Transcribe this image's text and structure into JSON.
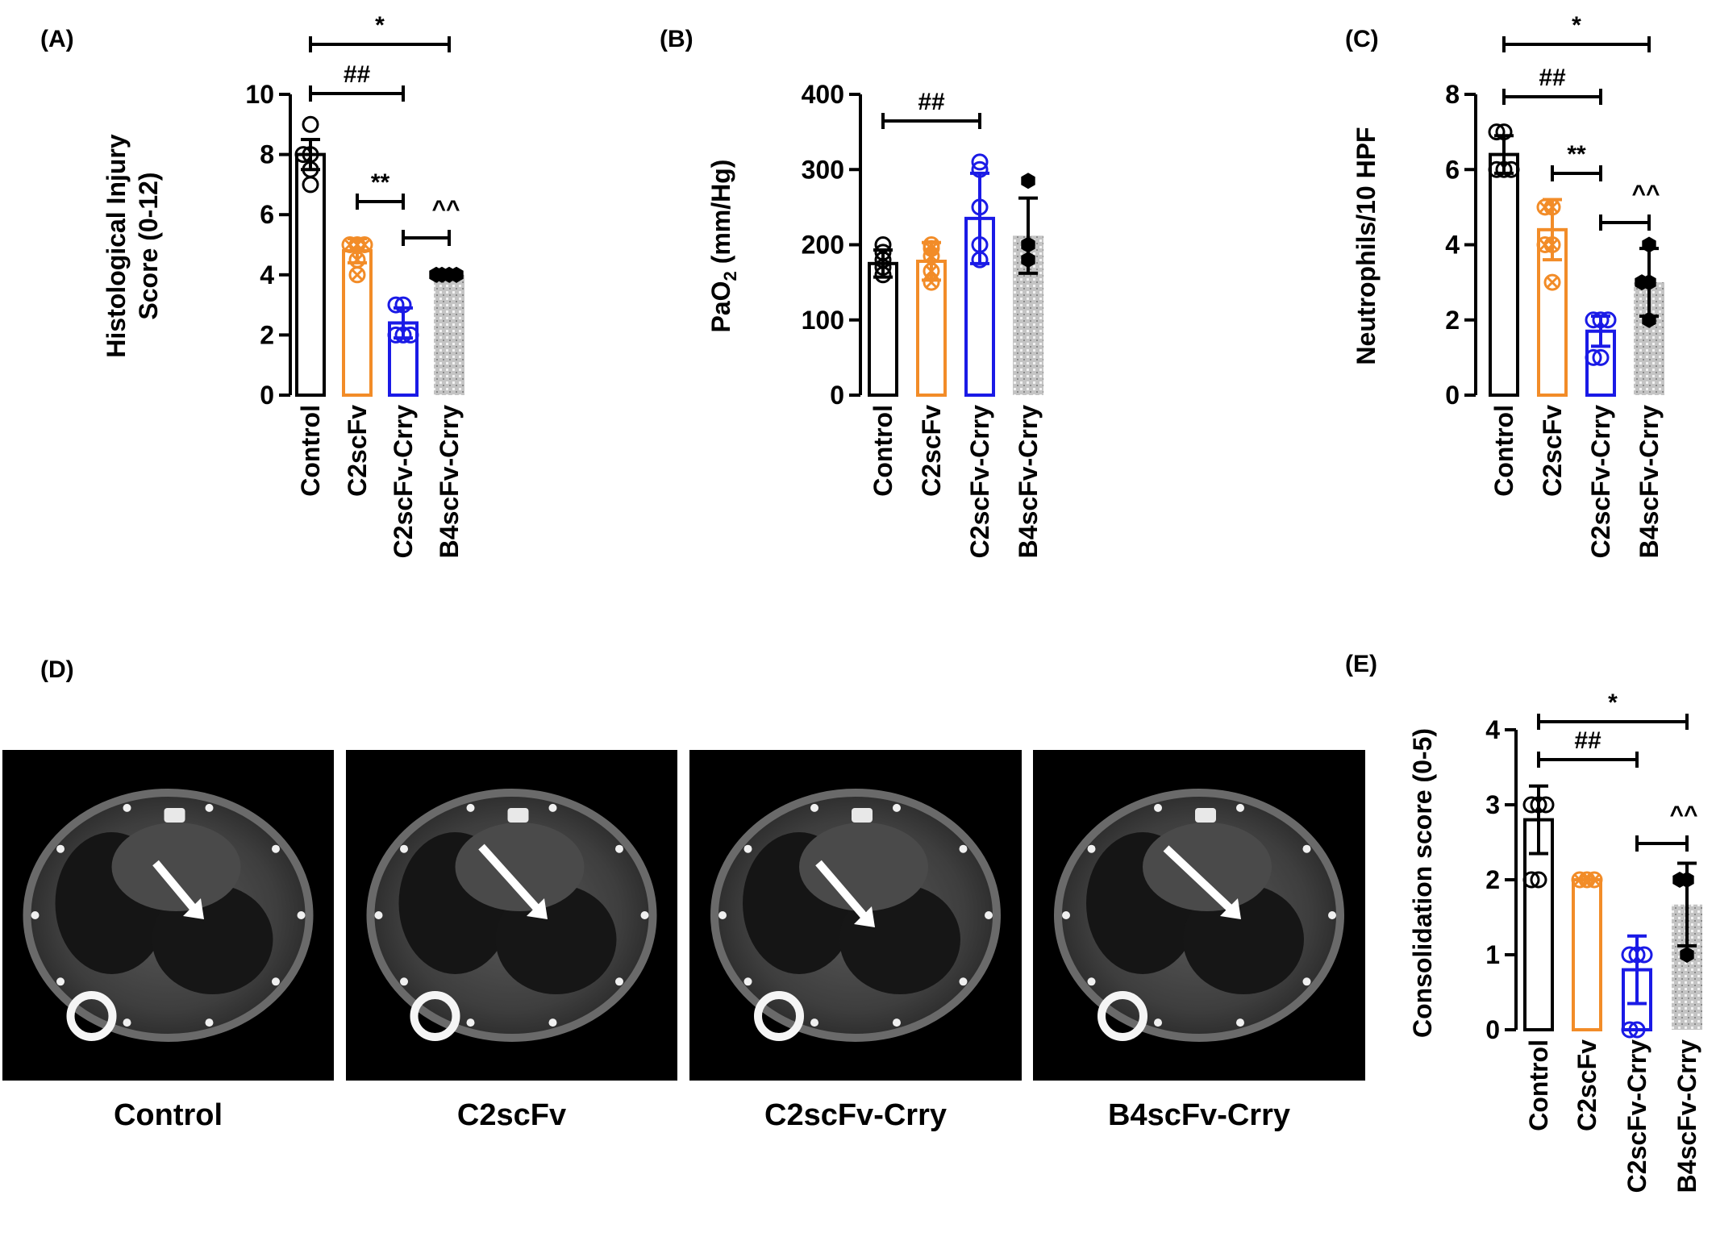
{
  "chart_data": [
    {
      "type": "bar",
      "panel": "(A)",
      "ylabel": [
        "Histological Injury",
        "Score (0-12)"
      ],
      "ylim": [
        0,
        10
      ],
      "yticks": [
        0,
        2,
        4,
        6,
        8,
        10
      ],
      "categories": [
        "Control",
        "C2scFv",
        "C2scFv-Crry",
        "B4scFv-Crry"
      ],
      "values": [
        8.0,
        4.8,
        2.4,
        4.0
      ],
      "errors": [
        0.5,
        0.4,
        0.5,
        0.0
      ],
      "points": [
        [
          9,
          8,
          8,
          7.5,
          7
        ],
        [
          5,
          5,
          5,
          4.5,
          4
        ],
        [
          3,
          3,
          2,
          2,
          2
        ],
        [
          4,
          4,
          4,
          4
        ]
      ],
      "significance": [
        {
          "from": 0,
          "to": 3,
          "label": "*"
        },
        {
          "from": 0,
          "to": 2,
          "label": "##"
        },
        {
          "from": 1,
          "to": 2,
          "label": "**"
        },
        {
          "from": 2,
          "to": 3,
          "label": "^^"
        }
      ]
    },
    {
      "type": "bar",
      "panel": "(B)",
      "ylabel": [
        "PaO2 (mm/Hg)"
      ],
      "ylim": [
        0,
        400
      ],
      "yticks": [
        0,
        100,
        200,
        300,
        400
      ],
      "categories": [
        "Control",
        "C2scFv",
        "C2scFv-Crry",
        "B4scFv-Crry"
      ],
      "values": [
        175,
        178,
        235,
        212
      ],
      "errors": [
        18,
        25,
        60,
        50
      ],
      "points": [
        [
          200,
          190,
          180,
          170,
          160
        ],
        [
          200,
          195,
          185,
          165,
          150
        ],
        [
          310,
          300,
          250,
          200,
          180
        ],
        [
          285,
          200,
          180
        ]
      ],
      "significance": [
        {
          "from": 0,
          "to": 2,
          "label": "##"
        }
      ]
    },
    {
      "type": "bar",
      "panel": "(C)",
      "ylabel": [
        "Neutrophils/10 HPF"
      ],
      "ylim": [
        0,
        8
      ],
      "yticks": [
        0,
        2,
        4,
        6,
        8
      ],
      "categories": [
        "Control",
        "C2scFv",
        "C2scFv-Crry",
        "B4scFv-Crry"
      ],
      "values": [
        6.4,
        4.4,
        1.7,
        3.0
      ],
      "errors": [
        0.5,
        0.8,
        0.4,
        0.9
      ],
      "points": [
        [
          7,
          7,
          6,
          6,
          6
        ],
        [
          5,
          5,
          4,
          4,
          3
        ],
        [
          2,
          2,
          2,
          1,
          1
        ],
        [
          4,
          3,
          3,
          2
        ]
      ],
      "significance": [
        {
          "from": 0,
          "to": 3,
          "label": "*"
        },
        {
          "from": 0,
          "to": 2,
          "label": "##"
        },
        {
          "from": 1,
          "to": 2,
          "label": "**"
        },
        {
          "from": 2,
          "to": 3,
          "label": "^^"
        }
      ]
    },
    {
      "type": "bar",
      "panel": "(E)",
      "ylabel": [
        "Consolidation score (0-5)"
      ],
      "ylim": [
        0,
        4
      ],
      "yticks": [
        0,
        1,
        2,
        3,
        4
      ],
      "categories": [
        "Control",
        "C2scFv",
        "C2scFv-Crry",
        "B4scFv-Crry"
      ],
      "values": [
        2.8,
        2.0,
        0.8,
        1.67
      ],
      "errors": [
        0.45,
        0.0,
        0.45,
        0.55
      ],
      "points": [
        [
          3,
          3,
          3,
          2,
          2
        ],
        [
          2,
          2,
          2
        ],
        [
          1,
          1,
          1,
          0,
          0
        ],
        [
          2,
          2,
          1
        ]
      ],
      "significance": [
        {
          "from": 0,
          "to": 3,
          "label": "*"
        },
        {
          "from": 0,
          "to": 2,
          "label": "##"
        },
        {
          "from": 2,
          "to": 3,
          "label": "^^"
        }
      ]
    }
  ],
  "panel_d": {
    "label": "(D)",
    "captions": [
      "Control",
      "C2scFv",
      "C2scFv-Crry",
      "B4scFv-Crry"
    ]
  },
  "colors": {
    "control": "#000000",
    "c2scfv": "#F28C28",
    "c2scfv_crry": "#1A1AE6",
    "b4scfv_crry": "#BEBEBE",
    "b4_points": "#000000"
  }
}
